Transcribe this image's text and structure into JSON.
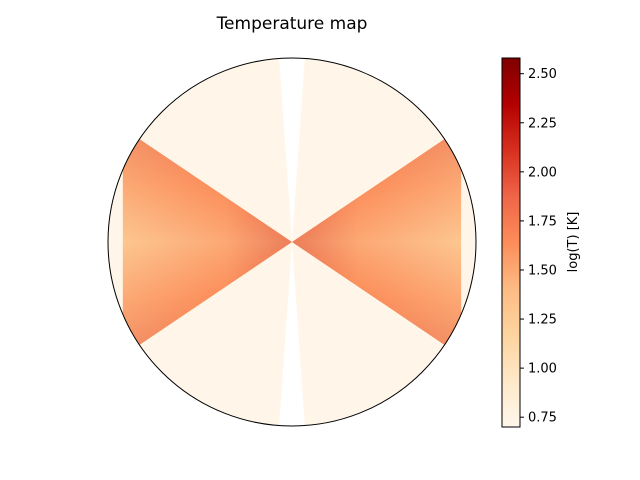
{
  "chart_data": {
    "type": "heatmap",
    "projection": "polar",
    "title": "Temperature map",
    "colormap": "OrRd",
    "colormap_stops": [
      "#fff7ec",
      "#fee8c8",
      "#fdd49e",
      "#fdbb84",
      "#fc8d59",
      "#ef6548",
      "#d7301f",
      "#b30000",
      "#7f0000"
    ],
    "colorbar": {
      "label": "log(T) [K]",
      "range": [
        0.7,
        2.58
      ],
      "ticks": [
        "0.75",
        "1.00",
        "1.25",
        "1.50",
        "1.75",
        "2.00",
        "2.25",
        "2.50"
      ]
    },
    "regions": [
      {
        "name": "background",
        "log_T": 0.72
      },
      {
        "name": "polar gap",
        "half_angle_deg": 4,
        "log_T": null
      },
      {
        "name": "disk wedge",
        "half_angle_deg": 34,
        "log_T_midplane": 1.25,
        "log_T_edge": 2.05
      }
    ]
  }
}
